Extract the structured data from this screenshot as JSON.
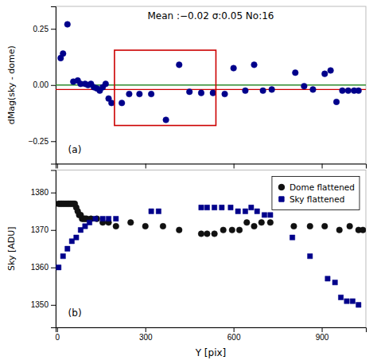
{
  "chart_data": [
    {
      "type": "scatter",
      "title": "Mean :−0.02  σ:0.05  No:16",
      "ylabel": "dMag(sky - dome)",
      "x": [
        12,
        20,
        35,
        55,
        70,
        80,
        95,
        105,
        115,
        125,
        135,
        145,
        155,
        165,
        175,
        185,
        220,
        245,
        280,
        320,
        370,
        415,
        450,
        490,
        530,
        570,
        600,
        640,
        670,
        700,
        730,
        810,
        840,
        870,
        910,
        930,
        950,
        970,
        990,
        1010,
        1025
      ],
      "values": [
        0.12,
        0.14,
        0.27,
        0.015,
        0.02,
        0.005,
        0.005,
        0.0,
        0.005,
        -0.01,
        -0.015,
        -0.025,
        -0.01,
        0.005,
        -0.06,
        -0.08,
        -0.08,
        -0.04,
        -0.04,
        -0.04,
        -0.155,
        0.09,
        -0.03,
        -0.035,
        -0.035,
        -0.04,
        0.075,
        -0.025,
        0.09,
        -0.025,
        -0.02,
        0.055,
        -0.005,
        -0.02,
        0.05,
        0.065,
        -0.075,
        -0.025,
        -0.025,
        -0.025,
        -0.025
      ],
      "color": "#00008b",
      "marker": "circle",
      "reference_lines": [
        {
          "value": 0.0,
          "color": "#2e8b2e"
        },
        {
          "value": -0.02,
          "color": "#cc0000"
        }
      ],
      "region": {
        "x": [
          195,
          540
        ],
        "y": [
          -0.18,
          0.155
        ],
        "color": "#cc0000"
      },
      "annotations": [
        "(a)"
      ],
      "xlim": [
        -5,
        1050
      ],
      "ylim": [
        -0.35,
        0.35
      ],
      "xticks": [
        0,
        300,
        600,
        900
      ],
      "yticks": [
        {
          "value": -0.25,
          "label": "−0.25"
        },
        {
          "value": 0.0,
          "label": "0.00"
        },
        0.25
      ],
      "tick_labels": "y"
    },
    {
      "type": "scatter",
      "xlabel": "Y [pix]",
      "ylabel": "Sky [ADU]",
      "series": [
        {
          "name": "Dome flattened",
          "color": "#111111",
          "marker": "circle",
          "x": [
            5,
            10,
            15,
            20,
            25,
            30,
            35,
            40,
            45,
            50,
            55,
            60,
            65,
            70,
            75,
            80,
            85,
            90,
            95,
            100,
            115,
            135,
            155,
            175,
            200,
            250,
            300,
            360,
            415,
            490,
            510,
            535,
            565,
            595,
            620,
            645,
            670,
            695,
            725,
            805,
            860,
            910,
            960,
            995,
            1025,
            1040
          ],
          "values": [
            1377,
            1377,
            1377,
            1377,
            1377,
            1377,
            1377,
            1377,
            1377,
            1377,
            1377,
            1377,
            1376,
            1375,
            1374,
            1374,
            1373,
            1373,
            1373,
            1373,
            1373,
            1373,
            1372,
            1372,
            1371,
            1372,
            1371,
            1371,
            1370,
            1369,
            1369,
            1369,
            1370,
            1370,
            1370,
            1372,
            1371,
            1372,
            1372,
            1371,
            1371,
            1371,
            1370,
            1371,
            1370,
            1370
          ]
        },
        {
          "name": "Sky flattened",
          "color": "#00008b",
          "marker": "square",
          "x": [
            5,
            20,
            35,
            50,
            65,
            80,
            95,
            110,
            130,
            155,
            175,
            200,
            320,
            345,
            490,
            510,
            535,
            560,
            590,
            615,
            640,
            660,
            680,
            705,
            725,
            800,
            860,
            920,
            945,
            965,
            985,
            1005,
            1025
          ],
          "values": [
            1360,
            1363,
            1365,
            1367,
            1368,
            1370,
            1371,
            1372,
            1373,
            1373,
            1373,
            1373,
            1375,
            1375,
            1376,
            1376,
            1376,
            1376,
            1376,
            1375,
            1375,
            1376,
            1375,
            1374,
            1374,
            1368,
            1363,
            1357,
            1356,
            1352,
            1351,
            1351,
            1350
          ]
        }
      ],
      "legend": "upper right",
      "annotations": [
        "(b)"
      ],
      "xlim": [
        -5,
        1050
      ],
      "ylim": [
        1344,
        1386
      ],
      "xticks": [
        0,
        300,
        600,
        900
      ],
      "yticks": [
        1350,
        1360,
        1370,
        1380
      ]
    }
  ]
}
